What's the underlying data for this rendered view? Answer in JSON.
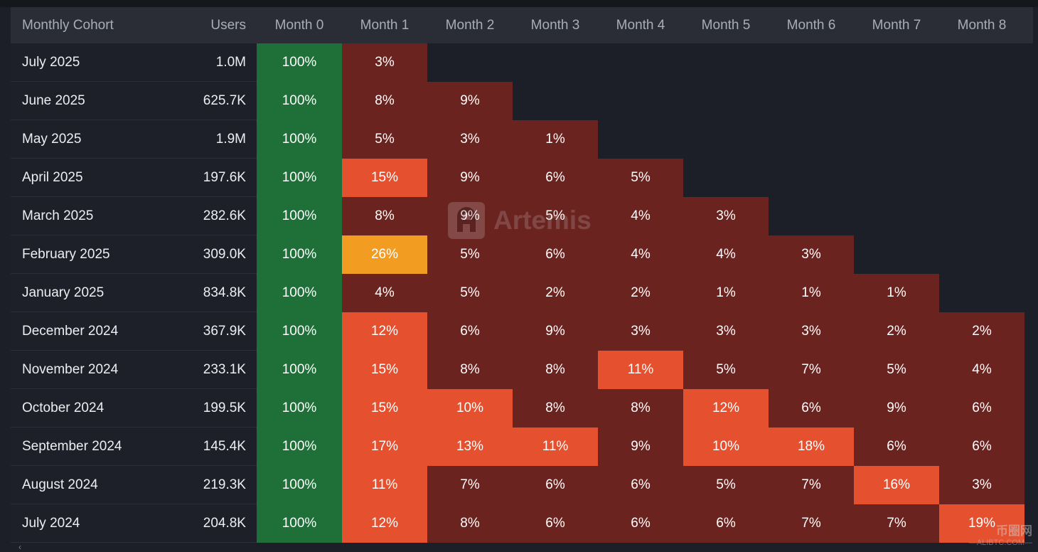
{
  "chart_data": {
    "type": "heatmap",
    "title": "",
    "columns": [
      "Monthly Cohort",
      "Users",
      "Month 0",
      "Month 1",
      "Month 2",
      "Month 3",
      "Month 4",
      "Month 5",
      "Month 6",
      "Month 7",
      "Month 8"
    ],
    "rows": [
      {
        "cohort": "July 2025",
        "users": "1.0M",
        "values": [
          "100%",
          "3%"
        ]
      },
      {
        "cohort": "June 2025",
        "users": "625.7K",
        "values": [
          "100%",
          "8%",
          "9%"
        ]
      },
      {
        "cohort": "May 2025",
        "users": "1.9M",
        "values": [
          "100%",
          "5%",
          "3%",
          "1%"
        ]
      },
      {
        "cohort": "April 2025",
        "users": "197.6K",
        "values": [
          "100%",
          "15%",
          "9%",
          "6%",
          "5%"
        ]
      },
      {
        "cohort": "March 2025",
        "users": "282.6K",
        "values": [
          "100%",
          "8%",
          "9%",
          "5%",
          "4%",
          "3%"
        ]
      },
      {
        "cohort": "February 2025",
        "users": "309.0K",
        "values": [
          "100%",
          "26%",
          "5%",
          "6%",
          "4%",
          "4%",
          "3%"
        ]
      },
      {
        "cohort": "January 2025",
        "users": "834.8K",
        "values": [
          "100%",
          "4%",
          "5%",
          "2%",
          "2%",
          "1%",
          "1%",
          "1%"
        ]
      },
      {
        "cohort": "December 2024",
        "users": "367.9K",
        "values": [
          "100%",
          "12%",
          "6%",
          "9%",
          "3%",
          "3%",
          "3%",
          "2%",
          "2%"
        ]
      },
      {
        "cohort": "November 2024",
        "users": "233.1K",
        "values": [
          "100%",
          "15%",
          "8%",
          "8%",
          "11%",
          "5%",
          "7%",
          "5%",
          "4%"
        ]
      },
      {
        "cohort": "October 2024",
        "users": "199.5K",
        "values": [
          "100%",
          "15%",
          "10%",
          "8%",
          "8%",
          "12%",
          "6%",
          "9%",
          "6%"
        ]
      },
      {
        "cohort": "September 2024",
        "users": "145.4K",
        "values": [
          "100%",
          "17%",
          "13%",
          "11%",
          "9%",
          "10%",
          "18%",
          "6%",
          "6%"
        ]
      },
      {
        "cohort": "August 2024",
        "users": "219.3K",
        "values": [
          "100%",
          "11%",
          "7%",
          "6%",
          "6%",
          "5%",
          "7%",
          "16%",
          "3%"
        ]
      },
      {
        "cohort": "July 2024",
        "users": "204.8K",
        "values": [
          "100%",
          "12%",
          "8%",
          "6%",
          "6%",
          "6%",
          "7%",
          "7%",
          "19%"
        ]
      }
    ],
    "color_scale": {
      "base": "#1f7038",
      "high": "#f39c22",
      "medium": "#e5502f",
      "low": "#6b2320"
    }
  },
  "watermark": {
    "text": "Artemis"
  },
  "corner_watermark": {
    "cn": "币圈网",
    "en": "—ALIBTC.COM—"
  },
  "scroll_hint": "‹"
}
